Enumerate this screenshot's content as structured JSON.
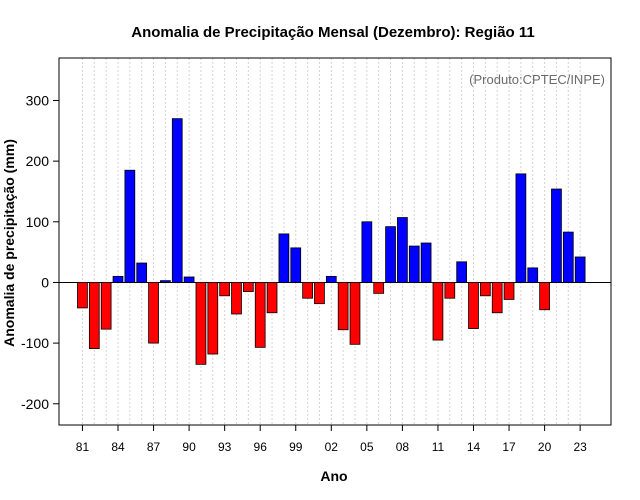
{
  "chart_data": {
    "type": "bar",
    "title": "Anomalia de Precipitação Mensal (Dezembro): Região 11",
    "xlabel": "Ano",
    "ylabel": "Anomalia de precipitação (mm)",
    "credit": "(Produto:CPTEC/INPE)",
    "ylim": [
      -235,
      370
    ],
    "yticks": [
      -200,
      -100,
      0,
      100,
      200,
      300
    ],
    "ytick_labels": [
      "-200",
      "-100",
      "0",
      "100",
      "200",
      "300"
    ],
    "grid": true,
    "categories": [
      "1981",
      "1982",
      "1983",
      "1984",
      "1985",
      "1986",
      "1987",
      "1988",
      "1989",
      "1990",
      "1991",
      "1992",
      "1993",
      "1994",
      "1995",
      "1996",
      "1997",
      "1998",
      "1999",
      "2000",
      "2001",
      "2002",
      "2003",
      "2004",
      "2005",
      "2006",
      "2007",
      "2008",
      "2009",
      "2010",
      "2011",
      "2012",
      "2013",
      "2014",
      "2015",
      "2016",
      "2017",
      "2018",
      "2019",
      "2020",
      "2021",
      "2022",
      "2023"
    ],
    "values": [
      -42,
      -109,
      -77,
      10,
      185,
      32,
      -100,
      3,
      270,
      9,
      -135,
      -118,
      -22,
      -52,
      -15,
      -107,
      -50,
      80,
      57,
      -26,
      -35,
      10,
      -78,
      -102,
      100,
      -18,
      92,
      107,
      60,
      65,
      -95,
      -26,
      34,
      -76,
      -22,
      -50,
      -28,
      179,
      24,
      -45,
      154,
      83,
      42
    ],
    "xtick_labels": [
      "81",
      "84",
      "87",
      "90",
      "93",
      "96",
      "99",
      "02",
      "05",
      "08",
      "11",
      "14",
      "17",
      "20",
      "23"
    ],
    "xtick_index": [
      0,
      3,
      6,
      9,
      12,
      15,
      18,
      21,
      24,
      27,
      30,
      33,
      36,
      39,
      42
    ],
    "colors": {
      "positive": "#0000ff",
      "negative": "#ff0000",
      "outline": "#000000",
      "grid": "#d3d3d3",
      "zero_line": "#000000"
    }
  }
}
